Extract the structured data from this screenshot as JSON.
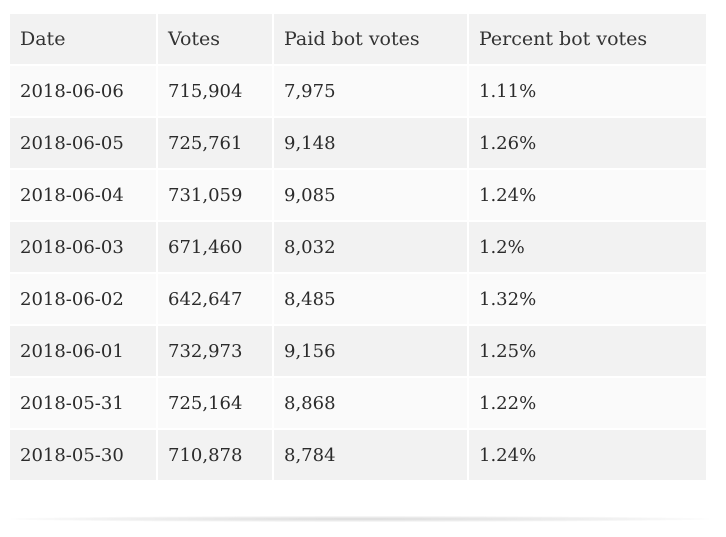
{
  "table": {
    "headers": [
      "Date",
      "Votes",
      "Paid bot votes",
      "Percent bot votes"
    ],
    "rows": [
      [
        "2018-06-06",
        "715,904",
        "7,975",
        "1.11%"
      ],
      [
        "2018-06-05",
        "725,761",
        "9,148",
        "1.26%"
      ],
      [
        "2018-06-04",
        "731,059",
        "9,085",
        "1.24%"
      ],
      [
        "2018-06-03",
        "671,460",
        "8,032",
        "1.2%"
      ],
      [
        "2018-06-02",
        "642,647",
        "8,485",
        "1.32%"
      ],
      [
        "2018-06-01",
        "732,973",
        "9,156",
        "1.25%"
      ],
      [
        "2018-05-31",
        "725,164",
        "8,868",
        "1.22%"
      ],
      [
        "2018-05-30",
        "710,878",
        "8,784",
        "1.24%"
      ]
    ]
  },
  "colors": {
    "header_bg": "#f2f2f2",
    "row_light": "#fafafa",
    "row_dark": "#f2f2f2",
    "text": "#2b2b2b"
  }
}
